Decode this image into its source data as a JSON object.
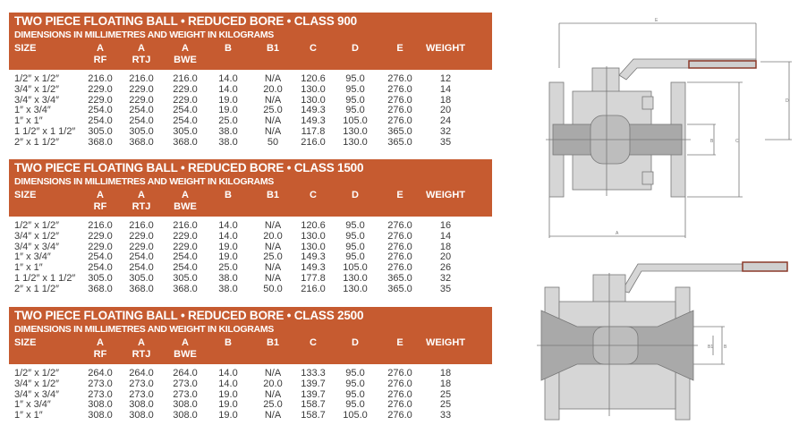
{
  "colors": {
    "header_band": "#c65b30",
    "header_text": "#ffffff",
    "body_text": "#3a3a3a",
    "handle_grip": "#8b3a2a"
  },
  "columns": [
    {
      "line1": "SIZE",
      "line2": ""
    },
    {
      "line1": "A",
      "line2": "RF"
    },
    {
      "line1": "A",
      "line2": "RTJ"
    },
    {
      "line1": "A",
      "line2": "BWE"
    },
    {
      "line1": "B",
      "line2": ""
    },
    {
      "line1": "B1",
      "line2": ""
    },
    {
      "line1": "C",
      "line2": ""
    },
    {
      "line1": "D",
      "line2": ""
    },
    {
      "line1": "E",
      "line2": ""
    },
    {
      "line1": "WEIGHT",
      "line2": ""
    }
  ],
  "tables": [
    {
      "title": "TWO PIECE FLOATING BALL • REDUCED BORE • CLASS 900",
      "subtitle": "DIMENSIONS IN MILLIMETRES AND WEIGHT IN KILOGRAMS",
      "rows": [
        [
          "1/2″ x 1/2″",
          "216.0",
          "216.0",
          "216.0",
          "14.0",
          "N/A",
          "120.6",
          "95.0",
          "276.0",
          "12"
        ],
        [
          "3/4″ x 1/2″",
          "229.0",
          "229.0",
          "229.0",
          "14.0",
          "20.0",
          "130.0",
          "95.0",
          "276.0",
          "14"
        ],
        [
          "3/4″ x 3/4″",
          "229.0",
          "229.0",
          "229.0",
          "19.0",
          "N/A",
          "130.0",
          "95.0",
          "276.0",
          "18"
        ],
        [
          "1″ x 3/4″",
          "254.0",
          "254.0",
          "254.0",
          "19.0",
          "25.0",
          "149.3",
          "95.0",
          "276.0",
          "20"
        ],
        [
          "1″ x 1″",
          "254.0",
          "254.0",
          "254.0",
          "25.0",
          "N/A",
          "149.3",
          "105.0",
          "276.0",
          "24"
        ],
        [
          "1 1/2″ x 1 1/2″",
          "305.0",
          "305.0",
          "305.0",
          "38.0",
          "N/A",
          "117.8",
          "130.0",
          "365.0",
          "32"
        ],
        [
          "2″ x 1 1/2″",
          "368.0",
          "368.0",
          "368.0",
          "38.0",
          "50",
          "216.0",
          "130.0",
          "365.0",
          "35"
        ]
      ]
    },
    {
      "title": "TWO PIECE FLOATING BALL • REDUCED BORE • CLASS 1500",
      "subtitle": "DIMENSIONS IN MILLIMETRES AND WEIGHT IN KILOGRAMS",
      "rows": [
        [
          "1/2″ x 1/2″",
          "216.0",
          "216.0",
          "216.0",
          "14.0",
          "N/A",
          "120.6",
          "95.0",
          "276.0",
          "16"
        ],
        [
          "3/4″ x 1/2″",
          "229.0",
          "229.0",
          "229.0",
          "14.0",
          "20.0",
          "130.0",
          "95.0",
          "276.0",
          "14"
        ],
        [
          "3/4″ x 3/4″",
          "229.0",
          "229.0",
          "229.0",
          "19.0",
          "N/A",
          "130.0",
          "95.0",
          "276.0",
          "18"
        ],
        [
          "1″ x 3/4″",
          "254.0",
          "254.0",
          "254.0",
          "19.0",
          "25.0",
          "149.3",
          "95.0",
          "276.0",
          "20"
        ],
        [
          "1″ x 1″",
          "254.0",
          "254.0",
          "254.0",
          "25.0",
          "N/A",
          "149.3",
          "105.0",
          "276.0",
          "26"
        ],
        [
          "1 1/2″ x 1 1/2″",
          "305.0",
          "305.0",
          "305.0",
          "38.0",
          "N/A",
          "177.8",
          "130.0",
          "365.0",
          "32"
        ],
        [
          "2″ x 1 1/2″",
          "368.0",
          "368.0",
          "368.0",
          "38.0",
          "50.0",
          "216.0",
          "130.0",
          "365.0",
          "35"
        ]
      ]
    },
    {
      "title": "TWO PIECE FLOATING BALL • REDUCED BORE • CLASS 2500",
      "subtitle": "DIMENSIONS IN MILLIMETRES AND WEIGHT IN KILOGRAMS",
      "rows": [
        [
          "1/2″ x 1/2″",
          "264.0",
          "264.0",
          "264.0",
          "14.0",
          "N/A",
          "133.3",
          "95.0",
          "276.0",
          "18"
        ],
        [
          "3/4″ x 1/2″",
          "273.0",
          "273.0",
          "273.0",
          "14.0",
          "20.0",
          "139.7",
          "95.0",
          "276.0",
          "18"
        ],
        [
          "3/4″ x 3/4″",
          "273.0",
          "273.0",
          "273.0",
          "19.0",
          "N/A",
          "139.7",
          "95.0",
          "276.0",
          "25"
        ],
        [
          "1″ x 3/4″",
          "308.0",
          "308.0",
          "308.0",
          "19.0",
          "25.0",
          "158.7",
          "95.0",
          "276.0",
          "25"
        ],
        [
          "1″ x 1″",
          "308.0",
          "308.0",
          "308.0",
          "19.0",
          "N/A",
          "158.7",
          "105.0",
          "276.0",
          "33"
        ]
      ]
    }
  ],
  "drawing_labels": {
    "a": "A",
    "b": "B",
    "c": "C",
    "d": "D",
    "e": "E",
    "b1": "B1"
  }
}
